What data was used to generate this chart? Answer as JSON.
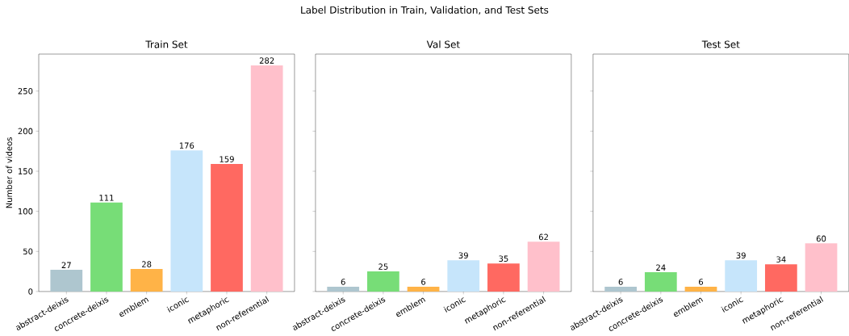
{
  "chart_data": [
    {
      "type": "bar",
      "title": "Train Set",
      "ylabel": "Number of videos",
      "annotations": [
        "Label Distribution in Train, Validation, and Test Sets"
      ],
      "categories": [
        "abstract-deixis",
        "concrete-deixis",
        "emblem",
        "iconic",
        "metaphoric",
        "non-referential"
      ],
      "values": [
        27,
        111,
        28,
        176,
        159,
        282
      ],
      "colors": [
        "#aec6cf",
        "#77dd77",
        "#ffb347",
        "#c6e5fb",
        "#ff6961",
        "#ffc0cb"
      ],
      "data_labels": true,
      "ylim": [
        0,
        296.1
      ],
      "yticks": [
        0,
        50,
        100,
        150,
        200,
        250
      ]
    },
    {
      "type": "bar",
      "title": "Val Set",
      "categories": [
        "abstract-deixis",
        "concrete-deixis",
        "emblem",
        "iconic",
        "metaphoric",
        "non-referential"
      ],
      "values": [
        6,
        25,
        6,
        39,
        35,
        62
      ],
      "colors": [
        "#aec6cf",
        "#77dd77",
        "#ffb347",
        "#c6e5fb",
        "#ff6961",
        "#ffc0cb"
      ],
      "data_labels": true,
      "ylim": [
        0,
        296.1
      ],
      "yticks": [
        0,
        50,
        100,
        150,
        200,
        250
      ],
      "tick_labels": "x"
    },
    {
      "type": "bar",
      "title": "Test Set",
      "categories": [
        "abstract-deixis",
        "concrete-deixis",
        "emblem",
        "iconic",
        "metaphoric",
        "non-referential"
      ],
      "values": [
        6,
        24,
        6,
        39,
        34,
        60
      ],
      "colors": [
        "#aec6cf",
        "#77dd77",
        "#ffb347",
        "#c6e5fb",
        "#ff6961",
        "#ffc0cb"
      ],
      "data_labels": true,
      "ylim": [
        0,
        296.1
      ],
      "yticks": [
        0,
        50,
        100,
        150,
        200,
        250
      ],
      "tick_labels": "x"
    }
  ]
}
